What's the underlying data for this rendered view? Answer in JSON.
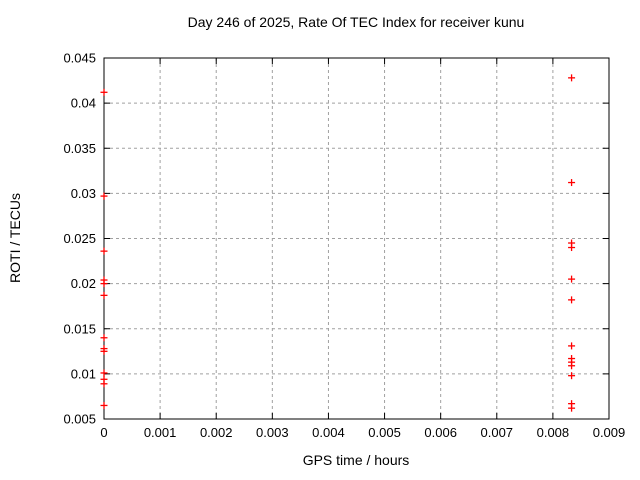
{
  "chart_data": {
    "type": "scatter",
    "title": "Day 246 of 2025, Rate Of TEC Index for receiver kunu",
    "xlabel": "GPS time / hours",
    "ylabel": "ROTI / TECUs",
    "xlim": [
      0,
      0.009
    ],
    "ylim": [
      0.005,
      0.045
    ],
    "xticks": [
      0,
      0.001,
      0.002,
      0.003,
      0.004,
      0.005,
      0.006,
      0.007,
      0.008,
      0.009
    ],
    "xtick_labels": [
      "0",
      "0.001",
      "0.002",
      "0.003",
      "0.004",
      "0.005",
      "0.006",
      "0.007",
      "0.008",
      "0.009"
    ],
    "yticks": [
      0.005,
      0.01,
      0.015,
      0.02,
      0.025,
      0.03,
      0.035,
      0.04,
      0.045
    ],
    "ytick_labels": [
      "0.005",
      "0.01",
      "0.015",
      "0.02",
      "0.025",
      "0.03",
      "0.035",
      "0.04",
      "0.045"
    ],
    "grid": true,
    "legend_position": "none",
    "marker": "plus",
    "colors": {
      "marker": "#ff0000",
      "grid": "#a0a0a0",
      "axis": "#000000",
      "background": "#ffffff"
    },
    "series": [
      {
        "name": "ROTI",
        "points": [
          [
            0,
            0.0412
          ],
          [
            0,
            0.0297
          ],
          [
            0,
            0.0236
          ],
          [
            0,
            0.0204
          ],
          [
            0,
            0.02
          ],
          [
            0,
            0.0187
          ],
          [
            0,
            0.014
          ],
          [
            0,
            0.0128
          ],
          [
            0,
            0.0125
          ],
          [
            0,
            0.0101
          ],
          [
            0,
            0.0094
          ],
          [
            0,
            0.0089
          ],
          [
            0,
            0.0065
          ],
          [
            0.008333,
            0.0428
          ],
          [
            0.008333,
            0.0312
          ],
          [
            0.008333,
            0.0245
          ],
          [
            0.008333,
            0.024
          ],
          [
            0.008333,
            0.0205
          ],
          [
            0.008333,
            0.0182
          ],
          [
            0.008333,
            0.0131
          ],
          [
            0.008333,
            0.0117
          ],
          [
            0.008333,
            0.0113
          ],
          [
            0.008333,
            0.0109
          ],
          [
            0.008333,
            0.0098
          ],
          [
            0.008333,
            0.0067
          ],
          [
            0.008333,
            0.0062
          ]
        ]
      }
    ]
  }
}
